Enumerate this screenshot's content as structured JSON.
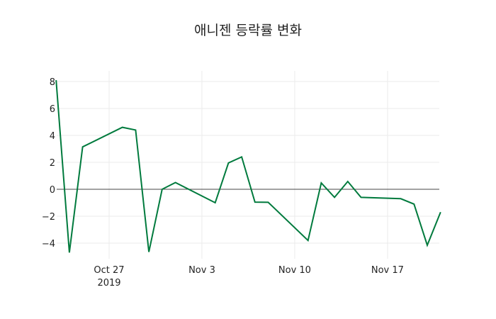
{
  "chart_data": {
    "type": "line",
    "title": "애니젠 등락률 변화",
    "xlabel": "",
    "ylabel": "",
    "ylim": [
      -5,
      8.2
    ],
    "grid": true,
    "legend": "none",
    "line_color": "#007a3d",
    "x_tick_labels": [
      "Oct 27\n2019",
      "Nov 3",
      "Nov 10",
      "Nov 17"
    ],
    "y_tick_labels": [
      "8",
      "6",
      "4",
      "2",
      "0",
      "−2",
      "−4"
    ],
    "x": [
      "2019-10-23",
      "2019-10-24",
      "2019-10-25",
      "2019-10-28",
      "2019-10-29",
      "2019-10-30",
      "2019-10-31",
      "2019-11-01",
      "2019-11-04",
      "2019-11-05",
      "2019-11-06",
      "2019-11-07",
      "2019-11-08",
      "2019-11-11",
      "2019-11-12",
      "2019-11-13",
      "2019-11-14",
      "2019-11-15",
      "2019-11-18",
      "2019-11-19",
      "2019-11-20",
      "2019-11-21"
    ],
    "series": [
      {
        "name": "등락률",
        "values": [
          8.1,
          -4.7,
          3.15,
          4.6,
          4.4,
          -4.65,
          0.0,
          0.5,
          -1.0,
          1.95,
          2.4,
          -0.95,
          -0.97,
          -3.8,
          0.47,
          -0.6,
          0.58,
          -0.6,
          -0.7,
          -1.1,
          -4.15,
          -1.7
        ]
      }
    ]
  }
}
